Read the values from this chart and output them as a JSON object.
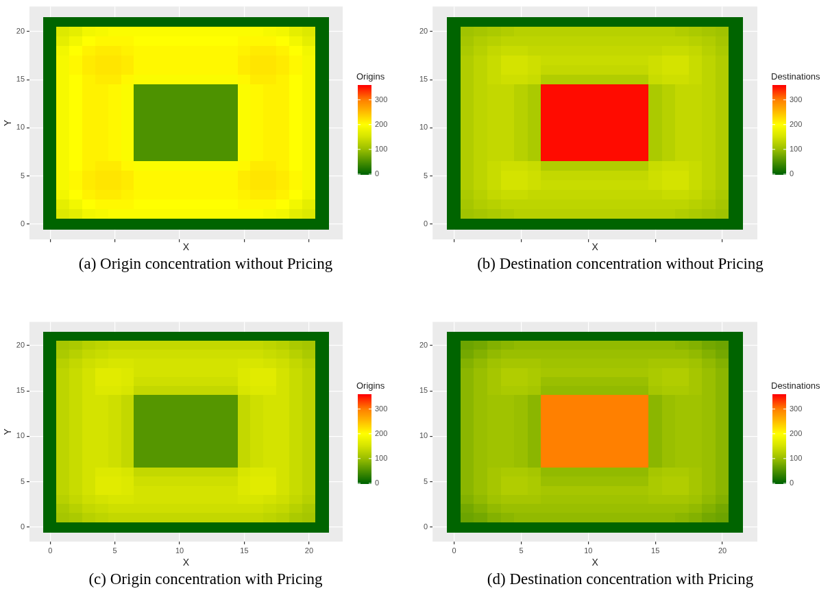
{
  "chart_data": [
    {
      "type": "heatmap",
      "title": "(a) Origin concentration without Pricing",
      "xlabel": "X",
      "ylabel": "Y",
      "clabel": "Origins",
      "clim": [
        0,
        360
      ],
      "cticks": [
        0,
        100,
        200,
        300
      ],
      "grid": true,
      "tick_labels": "y",
      "categories": [
        "0",
        null,
        null,
        null,
        null,
        "5",
        null,
        null,
        null,
        null,
        "10",
        null,
        null,
        null,
        null,
        "15",
        null,
        null,
        null,
        null,
        "20",
        null
      ],
      "y_categories": [
        null,
        "20",
        null,
        null,
        null,
        null,
        "15",
        null,
        null,
        null,
        null,
        "10",
        null,
        null,
        null,
        null,
        "5",
        null,
        null,
        null,
        null,
        "0"
      ],
      "cells": [
        [
          0,
          0,
          0,
          0,
          0,
          0,
          0,
          0,
          0,
          0,
          0,
          0,
          0,
          0,
          0,
          0,
          0,
          0,
          0,
          0,
          0,
          0
        ],
        [
          0,
          160,
          170,
          185,
          190,
          195,
          195,
          195,
          195,
          195,
          195,
          195,
          195,
          195,
          195,
          195,
          195,
          190,
          185,
          170,
          160,
          0
        ],
        [
          0,
          170,
          185,
          200,
          205,
          205,
          205,
          200,
          200,
          200,
          200,
          200,
          200,
          200,
          200,
          205,
          205,
          205,
          200,
          185,
          170,
          0
        ],
        [
          0,
          185,
          200,
          210,
          215,
          215,
          210,
          205,
          205,
          205,
          205,
          205,
          205,
          205,
          205,
          210,
          215,
          215,
          210,
          200,
          185,
          0
        ],
        [
          0,
          190,
          205,
          215,
          220,
          220,
          215,
          205,
          205,
          205,
          205,
          205,
          205,
          205,
          205,
          215,
          220,
          220,
          215,
          205,
          190,
          0
        ],
        [
          0,
          190,
          205,
          215,
          220,
          220,
          215,
          205,
          205,
          205,
          205,
          205,
          205,
          205,
          205,
          215,
          220,
          220,
          215,
          205,
          190,
          0
        ],
        [
          0,
          190,
          200,
          210,
          215,
          215,
          205,
          195,
          195,
          195,
          195,
          195,
          195,
          195,
          195,
          205,
          215,
          215,
          210,
          200,
          190,
          0
        ],
        [
          0,
          190,
          200,
          210,
          210,
          205,
          195,
          50,
          50,
          50,
          50,
          50,
          50,
          50,
          50,
          195,
          205,
          210,
          210,
          200,
          190,
          0
        ],
        [
          0,
          190,
          200,
          210,
          210,
          205,
          195,
          50,
          50,
          50,
          50,
          50,
          50,
          50,
          50,
          195,
          205,
          210,
          210,
          200,
          190,
          0
        ],
        [
          0,
          190,
          200,
          210,
          210,
          205,
          195,
          50,
          50,
          50,
          50,
          50,
          50,
          50,
          50,
          195,
          205,
          210,
          210,
          200,
          190,
          0
        ],
        [
          0,
          190,
          200,
          210,
          210,
          205,
          195,
          50,
          50,
          50,
          50,
          50,
          50,
          50,
          50,
          195,
          205,
          210,
          210,
          200,
          190,
          0
        ],
        [
          0,
          190,
          200,
          210,
          210,
          205,
          195,
          50,
          50,
          50,
          50,
          50,
          50,
          50,
          50,
          195,
          205,
          210,
          210,
          200,
          190,
          0
        ],
        [
          0,
          190,
          200,
          210,
          210,
          205,
          195,
          50,
          50,
          50,
          50,
          50,
          50,
          50,
          50,
          195,
          205,
          210,
          210,
          200,
          190,
          0
        ],
        [
          0,
          190,
          200,
          210,
          210,
          205,
          195,
          50,
          50,
          50,
          50,
          50,
          50,
          50,
          50,
          195,
          205,
          210,
          210,
          200,
          190,
          0
        ],
        [
          0,
          190,
          200,
          210,
          210,
          205,
          195,
          50,
          50,
          50,
          50,
          50,
          50,
          50,
          50,
          195,
          205,
          210,
          210,
          200,
          190,
          0
        ],
        [
          0,
          190,
          200,
          210,
          215,
          215,
          205,
          195,
          195,
          195,
          195,
          195,
          195,
          195,
          195,
          205,
          215,
          215,
          210,
          200,
          190,
          0
        ],
        [
          0,
          190,
          205,
          215,
          220,
          220,
          215,
          205,
          205,
          205,
          205,
          205,
          205,
          205,
          205,
          215,
          220,
          220,
          215,
          205,
          190,
          0
        ],
        [
          0,
          190,
          205,
          215,
          220,
          220,
          215,
          205,
          205,
          205,
          205,
          205,
          205,
          205,
          205,
          215,
          220,
          220,
          215,
          205,
          190,
          0
        ],
        [
          0,
          185,
          200,
          210,
          215,
          215,
          210,
          205,
          205,
          205,
          205,
          205,
          205,
          205,
          205,
          210,
          215,
          215,
          210,
          200,
          185,
          0
        ],
        [
          0,
          170,
          185,
          200,
          205,
          205,
          205,
          200,
          200,
          200,
          200,
          200,
          200,
          200,
          200,
          205,
          205,
          205,
          200,
          185,
          170,
          0
        ],
        [
          0,
          160,
          170,
          185,
          190,
          195,
          195,
          195,
          195,
          195,
          195,
          195,
          195,
          195,
          195,
          195,
          195,
          190,
          185,
          170,
          160,
          0
        ],
        [
          0,
          0,
          0,
          0,
          0,
          0,
          0,
          0,
          0,
          0,
          0,
          0,
          0,
          0,
          0,
          0,
          0,
          0,
          0,
          0,
          0,
          0
        ]
      ]
    },
    {
      "type": "heatmap",
      "title": "(b) Destination concentration without Pricing",
      "xlabel": "X",
      "clabel": "Destinations",
      "clim": [
        0,
        360
      ],
      "cticks": [
        0,
        100,
        200,
        300
      ],
      "grid": true,
      "tick_labels": "y",
      "categories": [
        "0",
        null,
        null,
        null,
        null,
        "5",
        null,
        null,
        null,
        null,
        "10",
        null,
        null,
        null,
        null,
        "15",
        null,
        null,
        null,
        null,
        "20",
        null
      ],
      "y_categories": [
        null,
        "20",
        null,
        null,
        null,
        null,
        "15",
        null,
        null,
        null,
        null,
        "10",
        null,
        null,
        null,
        null,
        "5",
        null,
        null,
        null,
        null,
        "0"
      ],
      "cells": [
        [
          0,
          0,
          0,
          0,
          0,
          0,
          0,
          0,
          0,
          0,
          0,
          0,
          0,
          0,
          0,
          0,
          0,
          0,
          0,
          0,
          0,
          0
        ],
        [
          0,
          105,
          110,
          115,
          120,
          125,
          125,
          125,
          125,
          125,
          125,
          125,
          125,
          125,
          125,
          125,
          125,
          120,
          115,
          110,
          105,
          0
        ],
        [
          0,
          110,
          120,
          125,
          130,
          130,
          130,
          130,
          130,
          130,
          130,
          130,
          130,
          130,
          130,
          130,
          130,
          130,
          125,
          120,
          110,
          0
        ],
        [
          0,
          115,
          125,
          135,
          140,
          140,
          135,
          135,
          135,
          135,
          135,
          135,
          135,
          135,
          135,
          135,
          140,
          140,
          135,
          125,
          115,
          0
        ],
        [
          0,
          120,
          130,
          140,
          150,
          150,
          145,
          140,
          140,
          140,
          140,
          140,
          140,
          140,
          140,
          145,
          150,
          150,
          140,
          130,
          120,
          0
        ],
        [
          0,
          120,
          130,
          140,
          150,
          150,
          145,
          135,
          135,
          135,
          135,
          135,
          135,
          135,
          135,
          145,
          150,
          150,
          140,
          130,
          120,
          0
        ],
        [
          0,
          120,
          130,
          140,
          145,
          145,
          140,
          120,
          120,
          120,
          120,
          120,
          120,
          120,
          120,
          140,
          145,
          145,
          140,
          130,
          120,
          0
        ],
        [
          0,
          120,
          130,
          135,
          135,
          125,
          115,
          355,
          355,
          355,
          355,
          355,
          355,
          355,
          355,
          115,
          125,
          135,
          135,
          130,
          120,
          0
        ],
        [
          0,
          120,
          130,
          135,
          135,
          125,
          115,
          355,
          355,
          355,
          355,
          355,
          355,
          355,
          355,
          115,
          125,
          135,
          135,
          130,
          120,
          0
        ],
        [
          0,
          120,
          130,
          135,
          135,
          125,
          115,
          355,
          355,
          355,
          355,
          355,
          355,
          355,
          355,
          115,
          125,
          135,
          135,
          130,
          120,
          0
        ],
        [
          0,
          120,
          130,
          135,
          135,
          125,
          115,
          355,
          355,
          355,
          355,
          355,
          355,
          355,
          355,
          115,
          125,
          135,
          135,
          130,
          120,
          0
        ],
        [
          0,
          120,
          130,
          135,
          135,
          125,
          115,
          355,
          355,
          355,
          355,
          355,
          355,
          355,
          355,
          115,
          125,
          135,
          135,
          130,
          120,
          0
        ],
        [
          0,
          120,
          130,
          135,
          135,
          125,
          115,
          355,
          355,
          355,
          355,
          355,
          355,
          355,
          355,
          115,
          125,
          135,
          135,
          130,
          120,
          0
        ],
        [
          0,
          120,
          130,
          135,
          135,
          125,
          115,
          355,
          355,
          355,
          355,
          355,
          355,
          355,
          355,
          115,
          125,
          135,
          135,
          130,
          120,
          0
        ],
        [
          0,
          120,
          130,
          135,
          135,
          125,
          115,
          355,
          355,
          355,
          355,
          355,
          355,
          355,
          355,
          115,
          125,
          135,
          135,
          130,
          120,
          0
        ],
        [
          0,
          120,
          130,
          140,
          145,
          145,
          140,
          120,
          120,
          120,
          120,
          120,
          120,
          120,
          120,
          140,
          145,
          145,
          140,
          130,
          120,
          0
        ],
        [
          0,
          120,
          130,
          140,
          150,
          150,
          145,
          135,
          135,
          135,
          135,
          135,
          135,
          135,
          135,
          145,
          150,
          150,
          140,
          130,
          120,
          0
        ],
        [
          0,
          120,
          130,
          140,
          150,
          150,
          145,
          140,
          140,
          140,
          140,
          140,
          140,
          140,
          140,
          145,
          150,
          150,
          140,
          130,
          120,
          0
        ],
        [
          0,
          115,
          125,
          135,
          140,
          140,
          135,
          135,
          135,
          135,
          135,
          135,
          135,
          135,
          135,
          135,
          140,
          140,
          135,
          125,
          115,
          0
        ],
        [
          0,
          110,
          120,
          125,
          130,
          130,
          130,
          130,
          130,
          130,
          130,
          130,
          130,
          130,
          130,
          130,
          130,
          130,
          125,
          120,
          110,
          0
        ],
        [
          0,
          105,
          110,
          115,
          120,
          125,
          125,
          125,
          125,
          125,
          125,
          125,
          125,
          125,
          125,
          125,
          125,
          120,
          115,
          110,
          105,
          0
        ],
        [
          0,
          0,
          0,
          0,
          0,
          0,
          0,
          0,
          0,
          0,
          0,
          0,
          0,
          0,
          0,
          0,
          0,
          0,
          0,
          0,
          0,
          0
        ]
      ]
    },
    {
      "type": "heatmap",
      "title": "(c) Origin concentration with Pricing",
      "xlabel": "X",
      "ylabel": "Y",
      "clabel": "Origins",
      "clim": [
        0,
        360
      ],
      "cticks": [
        0,
        100,
        200,
        300
      ],
      "grid": true,
      "categories": [
        "0",
        null,
        null,
        null,
        null,
        "5",
        null,
        null,
        null,
        null,
        "10",
        null,
        null,
        null,
        null,
        "15",
        null,
        null,
        null,
        null,
        "20",
        null
      ],
      "y_categories": [
        null,
        "20",
        null,
        null,
        null,
        null,
        "15",
        null,
        null,
        null,
        null,
        "10",
        null,
        null,
        null,
        null,
        "5",
        null,
        null,
        null,
        null,
        "0"
      ],
      "cells": [
        [
          0,
          0,
          0,
          0,
          0,
          0,
          0,
          0,
          0,
          0,
          0,
          0,
          0,
          0,
          0,
          0,
          0,
          0,
          0,
          0,
          0,
          0
        ],
        [
          0,
          110,
          115,
          125,
          130,
          135,
          135,
          135,
          135,
          135,
          135,
          135,
          135,
          135,
          135,
          135,
          135,
          130,
          125,
          115,
          110,
          0
        ],
        [
          0,
          115,
          125,
          135,
          140,
          145,
          145,
          145,
          145,
          145,
          145,
          145,
          145,
          145,
          145,
          145,
          145,
          140,
          135,
          125,
          115,
          0
        ],
        [
          0,
          125,
          135,
          145,
          150,
          155,
          155,
          150,
          150,
          150,
          150,
          150,
          150,
          150,
          150,
          155,
          155,
          150,
          145,
          135,
          125,
          0
        ],
        [
          0,
          130,
          140,
          150,
          165,
          165,
          160,
          150,
          150,
          150,
          150,
          150,
          150,
          150,
          150,
          160,
          165,
          165,
          150,
          140,
          130,
          0
        ],
        [
          0,
          130,
          140,
          150,
          165,
          165,
          160,
          145,
          145,
          145,
          145,
          145,
          145,
          145,
          145,
          160,
          165,
          165,
          150,
          140,
          130,
          0
        ],
        [
          0,
          130,
          140,
          150,
          160,
          160,
          155,
          135,
          135,
          135,
          135,
          135,
          135,
          135,
          135,
          155,
          160,
          160,
          150,
          140,
          130,
          0
        ],
        [
          0,
          130,
          140,
          150,
          150,
          145,
          135,
          55,
          55,
          55,
          55,
          55,
          55,
          55,
          55,
          135,
          145,
          150,
          150,
          140,
          130,
          0
        ],
        [
          0,
          130,
          140,
          150,
          150,
          145,
          135,
          55,
          55,
          55,
          55,
          55,
          55,
          55,
          55,
          135,
          145,
          150,
          150,
          140,
          130,
          0
        ],
        [
          0,
          130,
          140,
          150,
          150,
          145,
          135,
          55,
          55,
          55,
          55,
          55,
          55,
          55,
          55,
          135,
          145,
          150,
          150,
          140,
          130,
          0
        ],
        [
          0,
          130,
          140,
          150,
          150,
          145,
          135,
          55,
          55,
          55,
          55,
          55,
          55,
          55,
          55,
          135,
          145,
          150,
          150,
          140,
          130,
          0
        ],
        [
          0,
          130,
          140,
          150,
          150,
          145,
          135,
          55,
          55,
          55,
          55,
          55,
          55,
          55,
          55,
          135,
          145,
          150,
          150,
          140,
          130,
          0
        ],
        [
          0,
          130,
          140,
          150,
          150,
          145,
          135,
          55,
          55,
          55,
          55,
          55,
          55,
          55,
          55,
          135,
          145,
          150,
          150,
          140,
          130,
          0
        ],
        [
          0,
          130,
          140,
          150,
          150,
          145,
          135,
          55,
          55,
          55,
          55,
          55,
          55,
          55,
          55,
          135,
          145,
          150,
          150,
          140,
          130,
          0
        ],
        [
          0,
          130,
          140,
          150,
          150,
          145,
          135,
          55,
          55,
          55,
          55,
          55,
          55,
          55,
          55,
          135,
          145,
          150,
          150,
          140,
          130,
          0
        ],
        [
          0,
          130,
          140,
          150,
          160,
          160,
          155,
          135,
          135,
          135,
          135,
          135,
          135,
          135,
          135,
          155,
          160,
          160,
          150,
          140,
          130,
          0
        ],
        [
          0,
          130,
          140,
          150,
          165,
          165,
          160,
          145,
          145,
          145,
          145,
          145,
          145,
          145,
          145,
          160,
          165,
          165,
          150,
          140,
          130,
          0
        ],
        [
          0,
          130,
          140,
          150,
          165,
          165,
          160,
          150,
          150,
          150,
          150,
          150,
          150,
          150,
          150,
          160,
          165,
          165,
          150,
          140,
          130,
          0
        ],
        [
          0,
          125,
          135,
          145,
          150,
          155,
          155,
          150,
          150,
          150,
          150,
          150,
          150,
          150,
          150,
          155,
          155,
          150,
          145,
          135,
          125,
          0
        ],
        [
          0,
          115,
          125,
          135,
          140,
          145,
          145,
          145,
          145,
          145,
          145,
          145,
          145,
          145,
          145,
          145,
          145,
          140,
          135,
          125,
          115,
          0
        ],
        [
          0,
          110,
          115,
          125,
          130,
          135,
          135,
          135,
          135,
          135,
          135,
          135,
          135,
          135,
          135,
          135,
          135,
          130,
          125,
          115,
          110,
          0
        ],
        [
          0,
          0,
          0,
          0,
          0,
          0,
          0,
          0,
          0,
          0,
          0,
          0,
          0,
          0,
          0,
          0,
          0,
          0,
          0,
          0,
          0,
          0
        ]
      ]
    },
    {
      "type": "heatmap",
      "title": "(d) Destination concentration with Pricing",
      "xlabel": "X",
      "clabel": "Destinations",
      "clim": [
        0,
        360
      ],
      "cticks": [
        0,
        100,
        200,
        300
      ],
      "grid": true,
      "categories": [
        "0",
        null,
        null,
        null,
        null,
        "5",
        null,
        null,
        null,
        null,
        "10",
        null,
        null,
        null,
        null,
        "15",
        null,
        null,
        null,
        null,
        "20",
        null
      ],
      "y_categories": [
        null,
        "20",
        null,
        null,
        null,
        null,
        "15",
        null,
        null,
        null,
        null,
        "10",
        null,
        null,
        null,
        null,
        "5",
        null,
        null,
        null,
        null,
        "0"
      ],
      "cells": [
        [
          0,
          0,
          0,
          0,
          0,
          0,
          0,
          0,
          0,
          0,
          0,
          0,
          0,
          0,
          0,
          0,
          0,
          0,
          0,
          0,
          0,
          0
        ],
        [
          0,
          70,
          75,
          85,
          90,
          95,
          95,
          95,
          95,
          95,
          95,
          95,
          95,
          95,
          95,
          95,
          95,
          90,
          85,
          75,
          70,
          0
        ],
        [
          0,
          75,
          85,
          95,
          100,
          100,
          100,
          100,
          100,
          100,
          100,
          100,
          100,
          100,
          100,
          100,
          100,
          100,
          95,
          85,
          75,
          0
        ],
        [
          0,
          85,
          95,
          105,
          110,
          110,
          110,
          105,
          105,
          105,
          105,
          105,
          105,
          105,
          105,
          110,
          110,
          110,
          105,
          95,
          85,
          0
        ],
        [
          0,
          90,
          100,
          110,
          120,
          120,
          115,
          110,
          110,
          110,
          110,
          110,
          110,
          110,
          110,
          115,
          120,
          120,
          110,
          100,
          90,
          0
        ],
        [
          0,
          90,
          100,
          110,
          120,
          120,
          115,
          100,
          100,
          100,
          100,
          100,
          100,
          100,
          100,
          115,
          120,
          120,
          110,
          100,
          90,
          0
        ],
        [
          0,
          90,
          100,
          110,
          115,
          115,
          110,
          95,
          95,
          95,
          95,
          95,
          95,
          95,
          95,
          110,
          115,
          115,
          110,
          100,
          90,
          0
        ],
        [
          0,
          90,
          100,
          105,
          105,
          100,
          90,
          300,
          300,
          300,
          300,
          300,
          300,
          300,
          300,
          90,
          100,
          105,
          105,
          100,
          90,
          0
        ],
        [
          0,
          90,
          100,
          105,
          105,
          100,
          90,
          300,
          300,
          300,
          300,
          300,
          300,
          300,
          300,
          90,
          100,
          105,
          105,
          100,
          90,
          0
        ],
        [
          0,
          90,
          100,
          105,
          105,
          100,
          90,
          300,
          300,
          300,
          300,
          300,
          300,
          300,
          300,
          90,
          100,
          105,
          105,
          100,
          90,
          0
        ],
        [
          0,
          90,
          100,
          105,
          105,
          100,
          90,
          300,
          300,
          300,
          300,
          300,
          300,
          300,
          300,
          90,
          100,
          105,
          105,
          100,
          90,
          0
        ],
        [
          0,
          90,
          100,
          105,
          105,
          100,
          90,
          300,
          300,
          300,
          300,
          300,
          300,
          300,
          300,
          90,
          100,
          105,
          105,
          100,
          90,
          0
        ],
        [
          0,
          90,
          100,
          105,
          105,
          100,
          90,
          300,
          300,
          300,
          300,
          300,
          300,
          300,
          300,
          90,
          100,
          105,
          105,
          100,
          90,
          0
        ],
        [
          0,
          90,
          100,
          105,
          105,
          100,
          90,
          300,
          300,
          300,
          300,
          300,
          300,
          300,
          300,
          90,
          100,
          105,
          105,
          100,
          90,
          0
        ],
        [
          0,
          90,
          100,
          105,
          105,
          100,
          90,
          300,
          300,
          300,
          300,
          300,
          300,
          300,
          300,
          90,
          100,
          105,
          105,
          100,
          90,
          0
        ],
        [
          0,
          90,
          100,
          110,
          115,
          115,
          110,
          95,
          95,
          95,
          95,
          95,
          95,
          95,
          95,
          110,
          115,
          115,
          110,
          100,
          90,
          0
        ],
        [
          0,
          90,
          100,
          110,
          120,
          120,
          115,
          100,
          100,
          100,
          100,
          100,
          100,
          100,
          100,
          115,
          120,
          120,
          110,
          100,
          90,
          0
        ],
        [
          0,
          90,
          100,
          110,
          120,
          120,
          115,
          110,
          110,
          110,
          110,
          110,
          110,
          110,
          110,
          115,
          120,
          120,
          110,
          100,
          90,
          0
        ],
        [
          0,
          85,
          95,
          105,
          110,
          110,
          110,
          105,
          105,
          105,
          105,
          105,
          105,
          105,
          105,
          110,
          110,
          110,
          105,
          95,
          85,
          0
        ],
        [
          0,
          75,
          85,
          95,
          100,
          100,
          100,
          100,
          100,
          100,
          100,
          100,
          100,
          100,
          100,
          100,
          100,
          100,
          95,
          85,
          75,
          0
        ],
        [
          0,
          70,
          75,
          85,
          90,
          95,
          95,
          95,
          95,
          95,
          95,
          95,
          95,
          95,
          95,
          95,
          95,
          90,
          85,
          75,
          70,
          0
        ],
        [
          0,
          0,
          0,
          0,
          0,
          0,
          0,
          0,
          0,
          0,
          0,
          0,
          0,
          0,
          0,
          0,
          0,
          0,
          0,
          0,
          0,
          0
        ]
      ]
    }
  ]
}
